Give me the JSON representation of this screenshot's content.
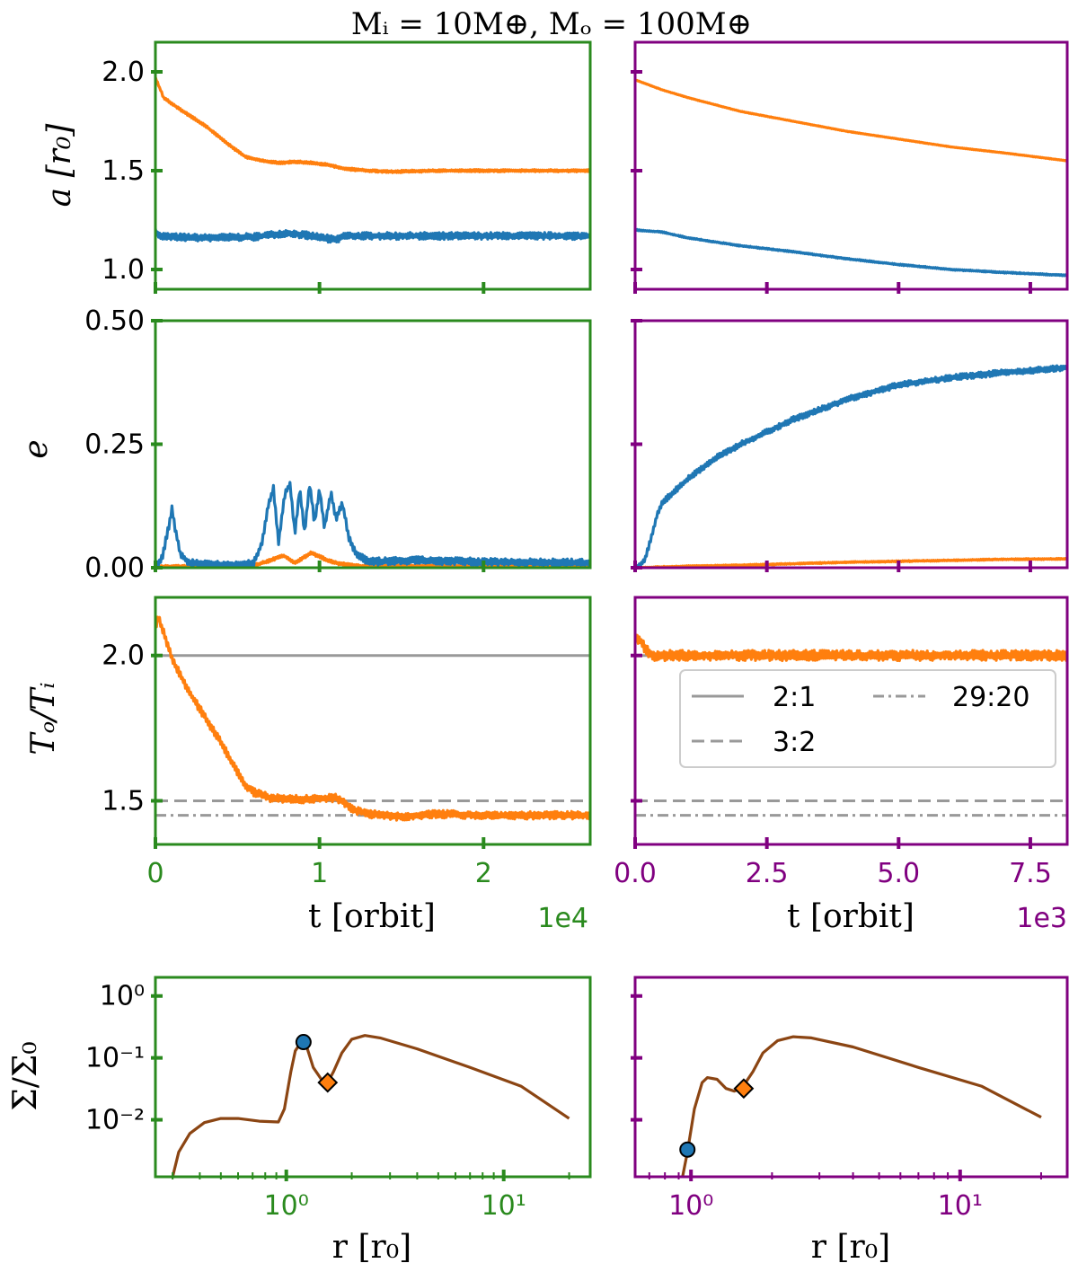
{
  "title": "Mᵢ = 10M⊕, Mₒ = 100M⊕",
  "colors": {
    "inner": "#1f77b4",
    "outer": "#ff7f0e",
    "left_frame": "#2a8a1e",
    "right_frame": "#800080",
    "density": "#8b4513",
    "reference": "#999999"
  },
  "labels": {
    "a_ylabel": "a [r₀]",
    "e_ylabel": "e",
    "ratio_ylabel": "Tₒ/Tᵢ",
    "t_xlabel": "t [orbit]",
    "sigma_ylabel": "Σ/Σ₀",
    "r_xlabel": "r [r₀]",
    "left_t_multiplier": "1e4",
    "right_t_multiplier": "1e3"
  },
  "legend": [
    "2:1",
    "3:2",
    "29:20"
  ],
  "chart_data": [
    {
      "id": "left_a",
      "type": "line",
      "xlabel": "",
      "ylabel": "a [r₀]",
      "xlim": [
        0,
        2.65
      ],
      "ylim": [
        0.9,
        2.15
      ],
      "x_ticks": [
        0,
        1,
        2
      ],
      "y_ticks": [
        1.0,
        1.5,
        2.0
      ],
      "y_tick_labels": [
        "1.0",
        "1.5",
        "2.0"
      ],
      "series": [
        {
          "name": "inner",
          "color": "#1f77b4",
          "noise": 0.012,
          "points": [
            [
              0,
              1.2
            ],
            [
              0.02,
              1.17
            ],
            [
              0.1,
              1.165
            ],
            [
              0.3,
              1.16
            ],
            [
              0.6,
              1.165
            ],
            [
              0.8,
              1.185
            ],
            [
              0.95,
              1.17
            ],
            [
              1.1,
              1.15
            ],
            [
              1.15,
              1.17
            ],
            [
              1.4,
              1.17
            ],
            [
              1.8,
              1.17
            ],
            [
              2.2,
              1.17
            ],
            [
              2.65,
              1.17
            ]
          ]
        },
        {
          "name": "outer",
          "color": "#ff7f0e",
          "noise": 0.004,
          "points": [
            [
              0,
              1.97
            ],
            [
              0.05,
              1.87
            ],
            [
              0.15,
              1.81
            ],
            [
              0.3,
              1.73
            ],
            [
              0.45,
              1.63
            ],
            [
              0.55,
              1.57
            ],
            [
              0.65,
              1.55
            ],
            [
              0.75,
              1.54
            ],
            [
              0.85,
              1.545
            ],
            [
              0.95,
              1.54
            ],
            [
              1.05,
              1.53
            ],
            [
              1.15,
              1.51
            ],
            [
              1.3,
              1.5
            ],
            [
              1.45,
              1.495
            ],
            [
              1.7,
              1.5
            ],
            [
              2.2,
              1.5
            ],
            [
              2.65,
              1.5
            ]
          ]
        }
      ]
    },
    {
      "id": "right_a",
      "type": "line",
      "xlabel": "",
      "ylabel": "",
      "xlim": [
        0,
        8.2
      ],
      "ylim": [
        0.9,
        2.15
      ],
      "x_ticks": [
        0,
        2.5,
        5.0,
        7.5
      ],
      "y_ticks": [
        1.0,
        1.5,
        2.0
      ],
      "y_tick_labels": [],
      "series": [
        {
          "name": "inner",
          "color": "#1f77b4",
          "noise": 0.002,
          "points": [
            [
              0,
              1.2
            ],
            [
              0.5,
              1.19
            ],
            [
              1,
              1.16
            ],
            [
              2,
              1.12
            ],
            [
              3,
              1.09
            ],
            [
              4,
              1.055
            ],
            [
              5,
              1.025
            ],
            [
              6,
              1.0
            ],
            [
              7,
              0.985
            ],
            [
              8.2,
              0.97
            ]
          ]
        },
        {
          "name": "outer",
          "color": "#ff7f0e",
          "noise": 0.001,
          "points": [
            [
              0,
              1.96
            ],
            [
              0.5,
              1.91
            ],
            [
              1,
              1.87
            ],
            [
              2,
              1.8
            ],
            [
              3,
              1.75
            ],
            [
              4,
              1.7
            ],
            [
              5,
              1.66
            ],
            [
              6,
              1.62
            ],
            [
              7,
              1.59
            ],
            [
              8.2,
              1.55
            ]
          ]
        }
      ]
    },
    {
      "id": "left_e",
      "type": "line",
      "xlabel": "",
      "ylabel": "e",
      "xlim": [
        0,
        2.65
      ],
      "ylim": [
        0,
        0.5
      ],
      "x_ticks": [
        0,
        1,
        2
      ],
      "y_ticks": [
        0,
        0.25,
        0.5
      ],
      "y_tick_labels": [
        "0.00",
        "0.25",
        "0.50"
      ],
      "series": [
        {
          "name": "outer",
          "color": "#ff7f0e",
          "noise": 0.002,
          "points": [
            [
              0,
              0.002
            ],
            [
              0.4,
              0.002
            ],
            [
              0.6,
              0.004
            ],
            [
              0.7,
              0.015
            ],
            [
              0.78,
              0.025
            ],
            [
              0.85,
              0.01
            ],
            [
              0.95,
              0.03
            ],
            [
              1.05,
              0.015
            ],
            [
              1.12,
              0.008
            ],
            [
              1.25,
              0.003
            ],
            [
              2.65,
              0.003
            ]
          ]
        },
        {
          "name": "inner",
          "color": "#1f77b4",
          "noise": 0.005,
          "points": [
            [
              0,
              0.0
            ],
            [
              0.04,
              0.02
            ],
            [
              0.08,
              0.08
            ],
            [
              0.1,
              0.12
            ],
            [
              0.12,
              0.08
            ],
            [
              0.15,
              0.03
            ],
            [
              0.2,
              0.01
            ],
            [
              0.5,
              0.005
            ],
            [
              0.6,
              0.01
            ],
            [
              0.65,
              0.05
            ],
            [
              0.69,
              0.13
            ],
            [
              0.72,
              0.16
            ],
            [
              0.75,
              0.05
            ],
            [
              0.79,
              0.15
            ],
            [
              0.82,
              0.17
            ],
            [
              0.85,
              0.07
            ],
            [
              0.88,
              0.16
            ],
            [
              0.91,
              0.07
            ],
            [
              0.94,
              0.17
            ],
            [
              0.97,
              0.09
            ],
            [
              1.0,
              0.16
            ],
            [
              1.03,
              0.08
            ],
            [
              1.07,
              0.15
            ],
            [
              1.1,
              0.1
            ],
            [
              1.14,
              0.13
            ],
            [
              1.18,
              0.06
            ],
            [
              1.22,
              0.03
            ],
            [
              1.3,
              0.012
            ],
            [
              1.6,
              0.015
            ],
            [
              2.0,
              0.012
            ],
            [
              2.65,
              0.01
            ]
          ]
        }
      ]
    },
    {
      "id": "right_e",
      "type": "line",
      "xlabel": "",
      "ylabel": "",
      "xlim": [
        0,
        8.2
      ],
      "ylim": [
        0,
        0.5
      ],
      "x_ticks": [
        0,
        2.5,
        5.0,
        7.5
      ],
      "y_ticks": [
        0,
        0.25,
        0.5
      ],
      "y_tick_labels": [],
      "series": [
        {
          "name": "outer",
          "color": "#ff7f0e",
          "noise": 0.0008,
          "points": [
            [
              0,
              0.0
            ],
            [
              1,
              0.003
            ],
            [
              2,
              0.005
            ],
            [
              3,
              0.008
            ],
            [
              4,
              0.011
            ],
            [
              5,
              0.013
            ],
            [
              6,
              0.015
            ],
            [
              7,
              0.017
            ],
            [
              8.2,
              0.018
            ]
          ]
        },
        {
          "name": "inner",
          "color": "#1f77b4",
          "noise": 0.004,
          "points": [
            [
              0,
              0.0
            ],
            [
              0.1,
              0.005
            ],
            [
              0.2,
              0.02
            ],
            [
              0.3,
              0.06
            ],
            [
              0.4,
              0.1
            ],
            [
              0.5,
              0.13
            ],
            [
              0.7,
              0.15
            ],
            [
              1.0,
              0.18
            ],
            [
              1.5,
              0.22
            ],
            [
              2,
              0.25
            ],
            [
              3,
              0.3
            ],
            [
              4,
              0.34
            ],
            [
              5,
              0.37
            ],
            [
              6,
              0.385
            ],
            [
              7,
              0.395
            ],
            [
              8.2,
              0.405
            ]
          ]
        }
      ]
    },
    {
      "id": "left_ratio",
      "type": "line",
      "xlabel": "t [orbit]",
      "ylabel": "Tₒ/Tᵢ",
      "xlim": [
        0,
        2.65
      ],
      "ylim": [
        1.35,
        2.2
      ],
      "x_ticks": [
        0,
        1,
        2
      ],
      "x_tick_labels": [
        "0",
        "1",
        "2"
      ],
      "multiplier": "1e4",
      "y_ticks": [
        1.5,
        2.0
      ],
      "y_tick_labels": [
        "1.5",
        "2.0"
      ],
      "reference_lines": [
        {
          "label": "2:1",
          "value": 2.0,
          "style": "solid"
        },
        {
          "label": "3:2",
          "value": 1.5,
          "style": "dashed"
        },
        {
          "label": "29:20",
          "value": 1.45,
          "style": "dashdot"
        }
      ],
      "series": [
        {
          "name": "outer",
          "color": "#ff7f0e",
          "noise": 0.009,
          "points": [
            [
              0,
              2.1
            ],
            [
              0.02,
              2.13
            ],
            [
              0.05,
              2.08
            ],
            [
              0.1,
              1.99
            ],
            [
              0.2,
              1.88
            ],
            [
              0.3,
              1.79
            ],
            [
              0.4,
              1.7
            ],
            [
              0.5,
              1.6
            ],
            [
              0.55,
              1.55
            ],
            [
              0.6,
              1.53
            ],
            [
              0.7,
              1.51
            ],
            [
              0.9,
              1.505
            ],
            [
              1.1,
              1.51
            ],
            [
              1.14,
              1.5
            ],
            [
              1.2,
              1.47
            ],
            [
              1.3,
              1.455
            ],
            [
              1.5,
              1.445
            ],
            [
              1.7,
              1.455
            ],
            [
              2.0,
              1.45
            ],
            [
              2.3,
              1.45
            ],
            [
              2.65,
              1.45
            ]
          ]
        }
      ]
    },
    {
      "id": "right_ratio",
      "type": "line",
      "xlabel": "t [orbit]",
      "ylabel": "",
      "xlim": [
        0,
        8.2
      ],
      "ylim": [
        1.35,
        2.2
      ],
      "x_ticks": [
        0,
        2.5,
        5.0,
        7.5
      ],
      "x_tick_labels": [
        "0.0",
        "2.5",
        "5.0",
        "7.5"
      ],
      "multiplier": "1e3",
      "y_ticks": [
        1.5,
        2.0
      ],
      "y_tick_labels": [],
      "legend": [
        "2:1",
        "3:2",
        "29:20"
      ],
      "reference_lines": [
        {
          "label": "2:1",
          "value": 2.0,
          "style": "solid"
        },
        {
          "label": "3:2",
          "value": 1.5,
          "style": "dashed"
        },
        {
          "label": "29:20",
          "value": 1.45,
          "style": "dashdot"
        }
      ],
      "series": [
        {
          "name": "outer",
          "color": "#ff7f0e",
          "noise": 0.012,
          "points": [
            [
              0,
              2.06
            ],
            [
              0.1,
              2.05
            ],
            [
              0.2,
              2.02
            ],
            [
              0.35,
              2.0
            ],
            [
              1,
              2.0
            ],
            [
              4,
              2.0
            ],
            [
              8.2,
              2.0
            ]
          ]
        }
      ]
    },
    {
      "id": "left_sigma",
      "type": "line",
      "xlabel": "r [r₀]",
      "ylabel": "Σ/Σ₀",
      "xscale": "log",
      "yscale": "log",
      "xlim": [
        0.25,
        25
      ],
      "ylim": [
        0.0012,
        2
      ],
      "x_ticks": [
        1,
        10
      ],
      "x_tick_labels": [
        "10⁰",
        "10¹"
      ],
      "y_ticks": [
        0.01,
        0.1,
        1
      ],
      "y_tick_labels": [
        "10⁻²",
        "10⁻¹",
        "10⁰"
      ],
      "series": [
        {
          "name": "density",
          "color": "#8b4513",
          "points": [
            [
              0.3,
              0.0012
            ],
            [
              0.32,
              0.003
            ],
            [
              0.36,
              0.006
            ],
            [
              0.42,
              0.009
            ],
            [
              0.5,
              0.0105
            ],
            [
              0.6,
              0.0105
            ],
            [
              0.75,
              0.0095
            ],
            [
              0.92,
              0.0092
            ],
            [
              0.98,
              0.015
            ],
            [
              1.05,
              0.06
            ],
            [
              1.1,
              0.13
            ],
            [
              1.17,
              0.18
            ],
            [
              1.25,
              0.14
            ],
            [
              1.33,
              0.07
            ],
            [
              1.45,
              0.045
            ],
            [
              1.55,
              0.04
            ],
            [
              1.65,
              0.06
            ],
            [
              1.8,
              0.12
            ],
            [
              2.0,
              0.2
            ],
            [
              2.3,
              0.23
            ],
            [
              2.7,
              0.21
            ],
            [
              4,
              0.14
            ],
            [
              7,
              0.07
            ],
            [
              12,
              0.035
            ],
            [
              20,
              0.0105
            ]
          ]
        }
      ],
      "markers": [
        {
          "planet": "inner",
          "shape": "circle",
          "r": 1.2,
          "sigma": 0.18,
          "color": "#1f77b4"
        },
        {
          "planet": "outer",
          "shape": "diamond",
          "r": 1.55,
          "sigma": 0.04,
          "color": "#ff7f0e"
        }
      ]
    },
    {
      "id": "right_sigma",
      "type": "line",
      "xlabel": "r [r₀]",
      "ylabel": "",
      "xscale": "log",
      "yscale": "log",
      "xlim": [
        0.62,
        25
      ],
      "ylim": [
        0.0012,
        2
      ],
      "x_ticks": [
        1,
        10
      ],
      "x_tick_labels": [
        "10⁰",
        "10¹"
      ],
      "y_ticks": [
        0.01,
        0.1,
        1
      ],
      "y_tick_labels": [],
      "series": [
        {
          "name": "density",
          "color": "#8b4513",
          "points": [
            [
              0.93,
              0.0012
            ],
            [
              0.97,
              0.003
            ],
            [
              1.03,
              0.015
            ],
            [
              1.1,
              0.04
            ],
            [
              1.15,
              0.048
            ],
            [
              1.25,
              0.045
            ],
            [
              1.35,
              0.032
            ],
            [
              1.45,
              0.029
            ],
            [
              1.55,
              0.033
            ],
            [
              1.7,
              0.06
            ],
            [
              1.85,
              0.12
            ],
            [
              2.1,
              0.19
            ],
            [
              2.4,
              0.22
            ],
            [
              2.8,
              0.21
            ],
            [
              4,
              0.15
            ],
            [
              7,
              0.07
            ],
            [
              12,
              0.035
            ],
            [
              20,
              0.011
            ]
          ]
        }
      ],
      "markers": [
        {
          "planet": "inner",
          "shape": "circle",
          "r": 0.97,
          "sigma": 0.0033,
          "color": "#1f77b4"
        },
        {
          "planet": "outer",
          "shape": "diamond",
          "r": 1.57,
          "sigma": 0.032,
          "color": "#ff7f0e"
        }
      ]
    }
  ]
}
